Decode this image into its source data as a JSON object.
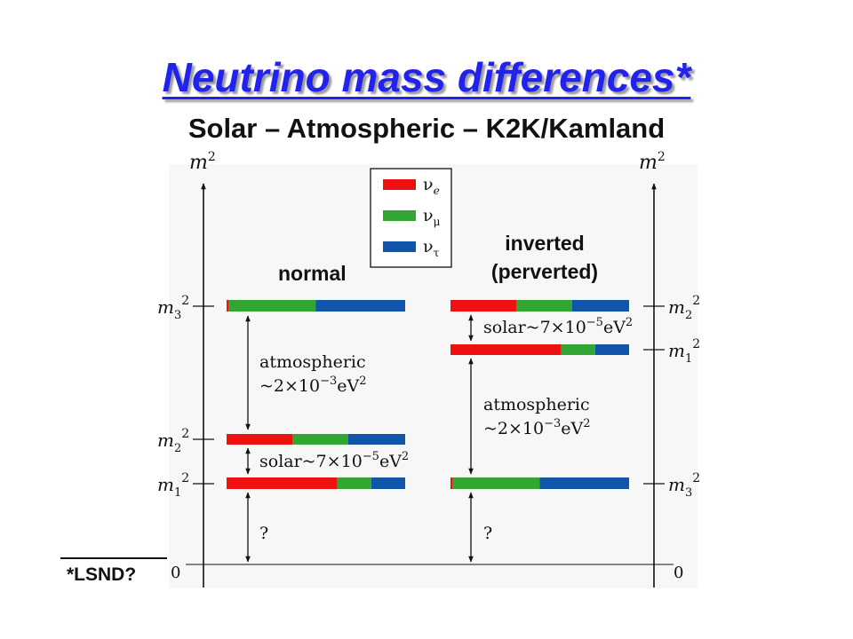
{
  "title": "Neutrino mass differences*",
  "subtitle": "Solar – Atmospheric – K2K/Kamland",
  "footnote": "*LSND?",
  "colors": {
    "nu_e": "#ee1111",
    "nu_mu": "#33a533",
    "nu_tau": "#1155aa",
    "title": "#2222ee"
  },
  "legend": [
    {
      "symbol": "ν",
      "sub": "e",
      "color_key": "nu_e"
    },
    {
      "symbol": "ν",
      "sub": "μ",
      "color_key": "nu_mu"
    },
    {
      "symbol": "ν",
      "sub": "τ",
      "color_key": "nu_tau"
    }
  ],
  "axes": {
    "left_label": {
      "base": "m",
      "sup": "2"
    },
    "right_label": {
      "base": "m",
      "sup": "2"
    },
    "zero_left": "0",
    "zero_right": "0"
  },
  "normal": {
    "heading": "normal",
    "levels": [
      {
        "name": "m",
        "sub": "3",
        "sup": "2",
        "flavor_fractions": {
          "nu_e": 0.01,
          "nu_mu": 0.49,
          "nu_tau": 0.5
        }
      },
      {
        "name": "m",
        "sub": "2",
        "sup": "2",
        "flavor_fractions": {
          "nu_e": 0.37,
          "nu_mu": 0.31,
          "nu_tau": 0.32
        }
      },
      {
        "name": "m",
        "sub": "1",
        "sup": "2",
        "flavor_fractions": {
          "nu_e": 0.62,
          "nu_mu": 0.19,
          "nu_tau": 0.19
        }
      }
    ],
    "gap_labels": {
      "atmospheric": {
        "line1": "atmospheric",
        "line2_prefix": "~2×10",
        "exp": "−3",
        "unit": "eV",
        "unit_sup": "2"
      },
      "solar": {
        "prefix": "solar~7×10",
        "exp": "−5",
        "unit": "eV",
        "unit_sup": "2"
      },
      "unknown": "?"
    }
  },
  "inverted": {
    "heading_line1": "inverted",
    "heading_line2": "(perverted)",
    "levels": [
      {
        "name": "m",
        "sub": "2",
        "sup": "2",
        "flavor_fractions": {
          "nu_e": 0.37,
          "nu_mu": 0.31,
          "nu_tau": 0.32
        }
      },
      {
        "name": "m",
        "sub": "1",
        "sup": "2",
        "flavor_fractions": {
          "nu_e": 0.62,
          "nu_mu": 0.19,
          "nu_tau": 0.19
        }
      },
      {
        "name": "m",
        "sub": "3",
        "sup": "2",
        "flavor_fractions": {
          "nu_e": 0.01,
          "nu_mu": 0.49,
          "nu_tau": 0.5
        }
      }
    ],
    "gap_labels": {
      "solar": {
        "prefix": "solar~7×10",
        "exp": "−5",
        "unit": "eV",
        "unit_sup": "2"
      },
      "atmospheric": {
        "line1": "atmospheric",
        "line2_prefix": "~2×10",
        "exp": "−3",
        "unit": "eV",
        "unit_sup": "2"
      },
      "unknown": "?"
    }
  }
}
